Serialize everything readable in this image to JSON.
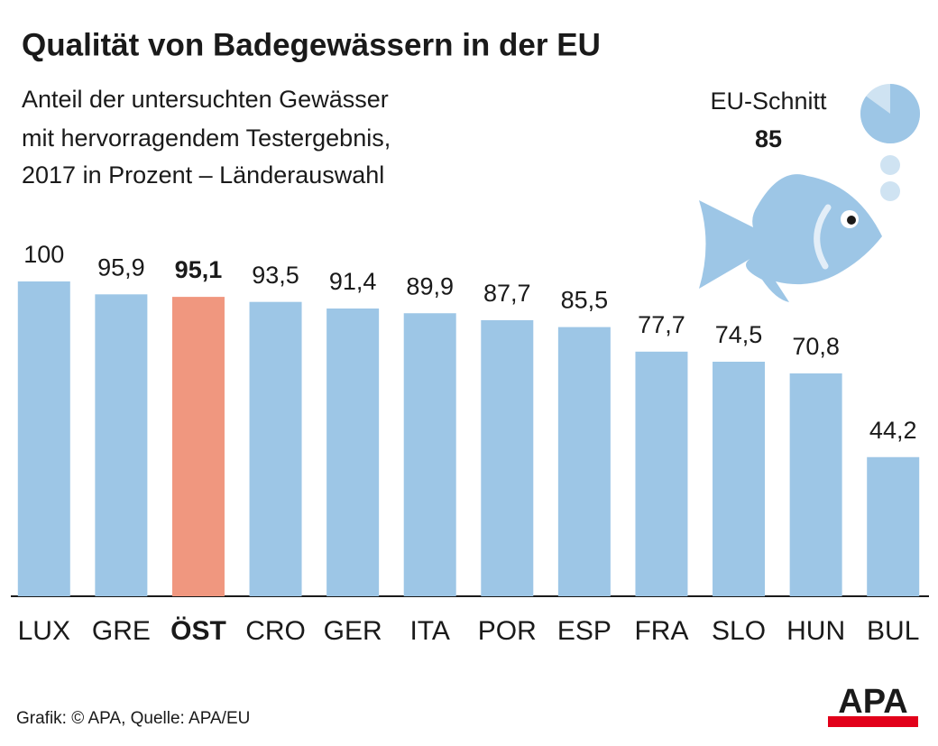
{
  "chart_data": {
    "type": "bar",
    "title": "Qualität von Badegewässern in der EU",
    "subtitle": [
      "Anteil der untersuchten Gewässer",
      "mit hervorragendem Testergebnis,",
      "2017 in Prozent – Länderauswahl"
    ],
    "categories": [
      "LUX",
      "GRE",
      "ÖST",
      "CRO",
      "GER",
      "ITA",
      "POR",
      "ESP",
      "FRA",
      "SLO",
      "HUN",
      "BUL"
    ],
    "values": [
      100,
      95.9,
      95.1,
      93.5,
      91.4,
      89.9,
      87.7,
      85.5,
      77.7,
      74.5,
      70.8,
      44.2
    ],
    "value_labels": [
      "100",
      "95,9",
      "95,1",
      "93,5",
      "91,4",
      "89,9",
      "87,7",
      "85,5",
      "77,7",
      "74,5",
      "70,8",
      "44,2"
    ],
    "color": "#9dc6e6",
    "highlight_index": 2,
    "highlight_color": "#f0977f",
    "ylim": [
      0,
      100
    ],
    "grid": false,
    "eu_average": {
      "label": "EU-Schnitt",
      "value": 85
    },
    "source": "Grafik: © APA, Quelle: APA/EU",
    "logo": "APA"
  }
}
